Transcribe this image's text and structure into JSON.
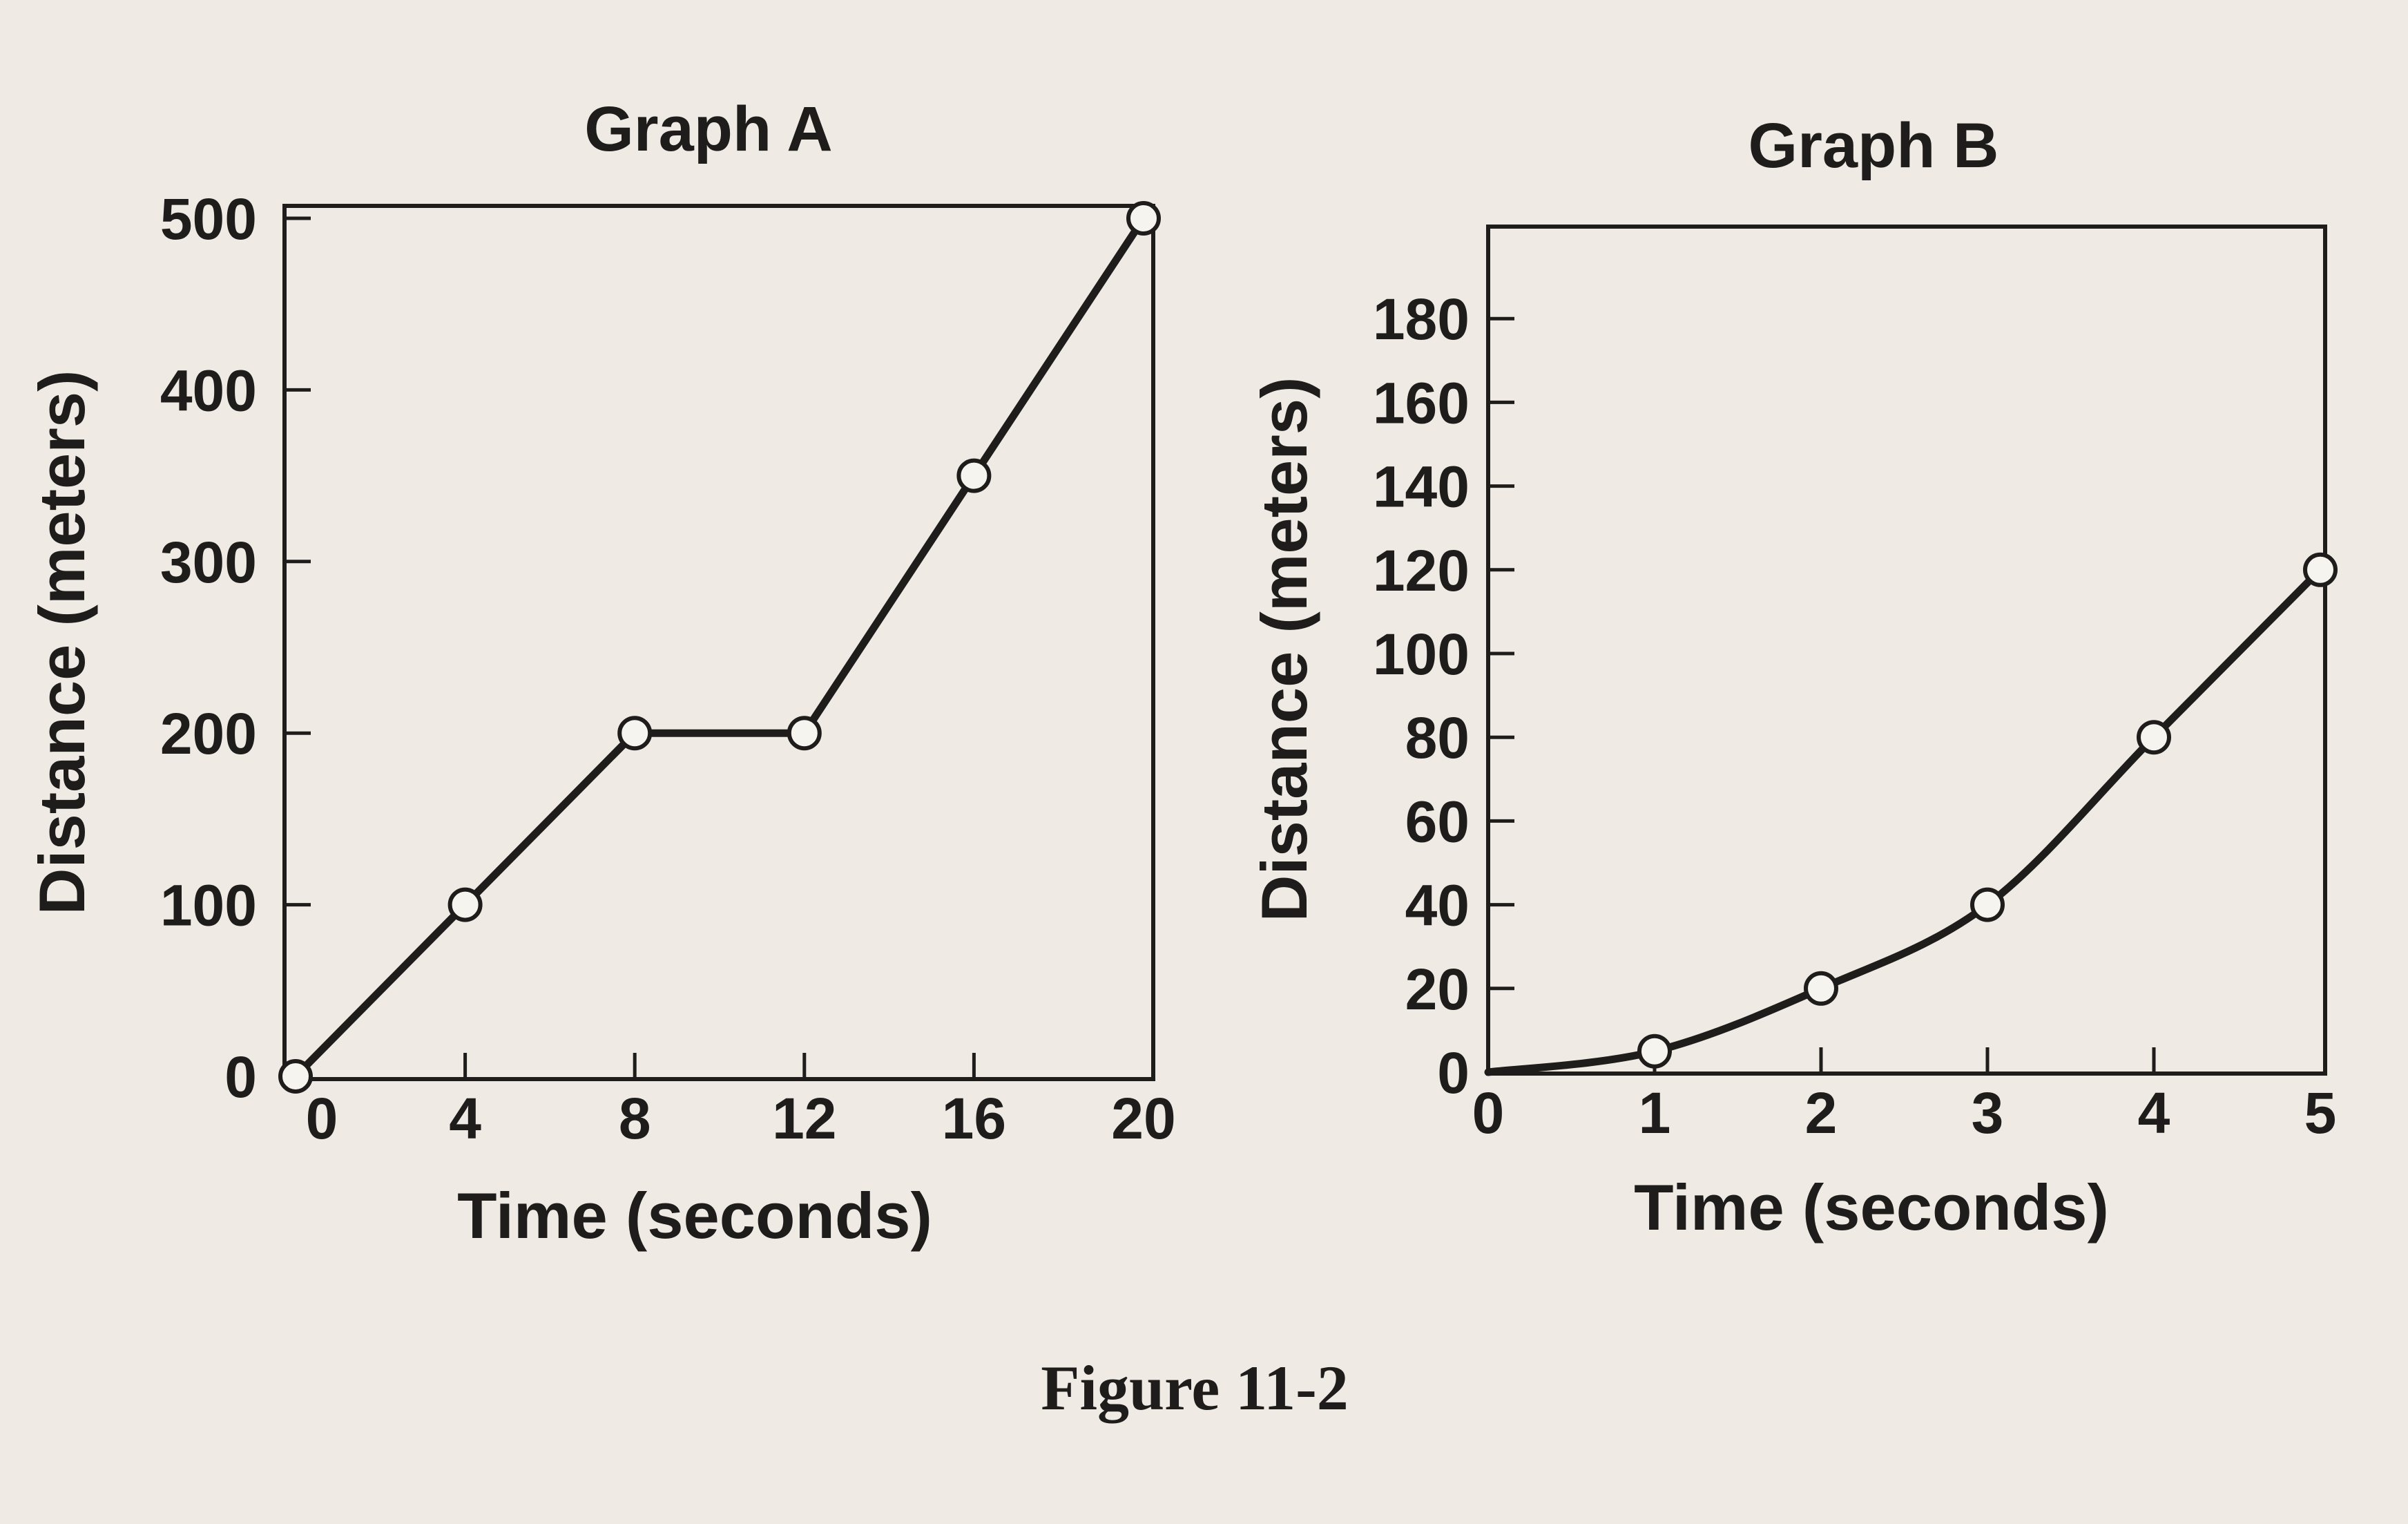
{
  "figure": {
    "caption": "Figure 11-2"
  },
  "colors": {
    "paper": "#efebe4",
    "ink": "#1f1d1c",
    "marker_fill": "#f6f4ee"
  },
  "chart_data": [
    {
      "type": "line",
      "title": "Graph A",
      "xlabel": "Time (seconds)",
      "ylabel": "Distance (meters)",
      "x": [
        0,
        4,
        8,
        12,
        16,
        20
      ],
      "y": [
        0,
        100,
        200,
        200,
        350,
        500
      ],
      "xlim": [
        0,
        20
      ],
      "ylim": [
        0,
        500
      ],
      "xticks": [
        0,
        4,
        8,
        12,
        16,
        20
      ],
      "yticks": [
        0,
        100,
        200,
        300,
        400,
        500
      ],
      "grid": false,
      "markers": "open-circle"
    },
    {
      "type": "line",
      "title": "Graph B",
      "xlabel": "Time (seconds)",
      "ylabel": "Distance (meters)",
      "x": [
        0,
        1,
        2,
        3,
        4,
        5
      ],
      "y": [
        0,
        5,
        20,
        40,
        80,
        120
      ],
      "xlim": [
        0,
        5
      ],
      "ylim": [
        0,
        200
      ],
      "xticks": [
        0,
        1,
        2,
        3,
        4,
        5
      ],
      "yticks": [
        0,
        20,
        40,
        60,
        80,
        100,
        120,
        140,
        160,
        180
      ],
      "grid": false,
      "markers": "open-circle",
      "curve": "smooth",
      "marked_x": [
        1,
        2,
        3,
        4,
        5
      ]
    }
  ]
}
